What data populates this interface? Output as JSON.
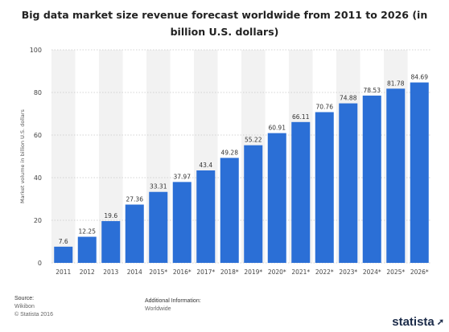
{
  "chart_data": {
    "type": "bar",
    "title": "Big data market size revenue forecast worldwide from 2011 to 2026 (in billion U.S. dollars)",
    "ylabel": "Market volume in billion U.S. dollars",
    "xlabel": "",
    "ylim": [
      0,
      100
    ],
    "yticks": [
      0,
      20,
      40,
      60,
      80,
      100
    ],
    "grid": true,
    "bar_color": "#2b6fd6",
    "categories": [
      "2011",
      "2012",
      "2013",
      "2014",
      "2015*",
      "2016*",
      "2017*",
      "2018*",
      "2019*",
      "2020*",
      "2021*",
      "2022*",
      "2023*",
      "2024*",
      "2025*",
      "2026*"
    ],
    "values": [
      7.6,
      12.25,
      19.6,
      27.36,
      33.31,
      37.97,
      43.4,
      49.28,
      55.22,
      60.91,
      66.11,
      70.76,
      74.88,
      78.53,
      81.78,
      84.69
    ],
    "value_labels": [
      "7.6",
      "12.25",
      "19.6",
      "27.36",
      "33.31",
      "37.97",
      "43.4",
      "49.28",
      "55.22",
      "60.91",
      "66.11",
      "70.76",
      "74.88",
      "78.53",
      "81.78",
      "84.69"
    ]
  },
  "footer": {
    "source_label": "Source:",
    "source_lines": [
      "Wikibon",
      "© Statista 2016"
    ],
    "additional_label": "Additional Information:",
    "additional_text": "Worldwide",
    "brand": "statista"
  }
}
